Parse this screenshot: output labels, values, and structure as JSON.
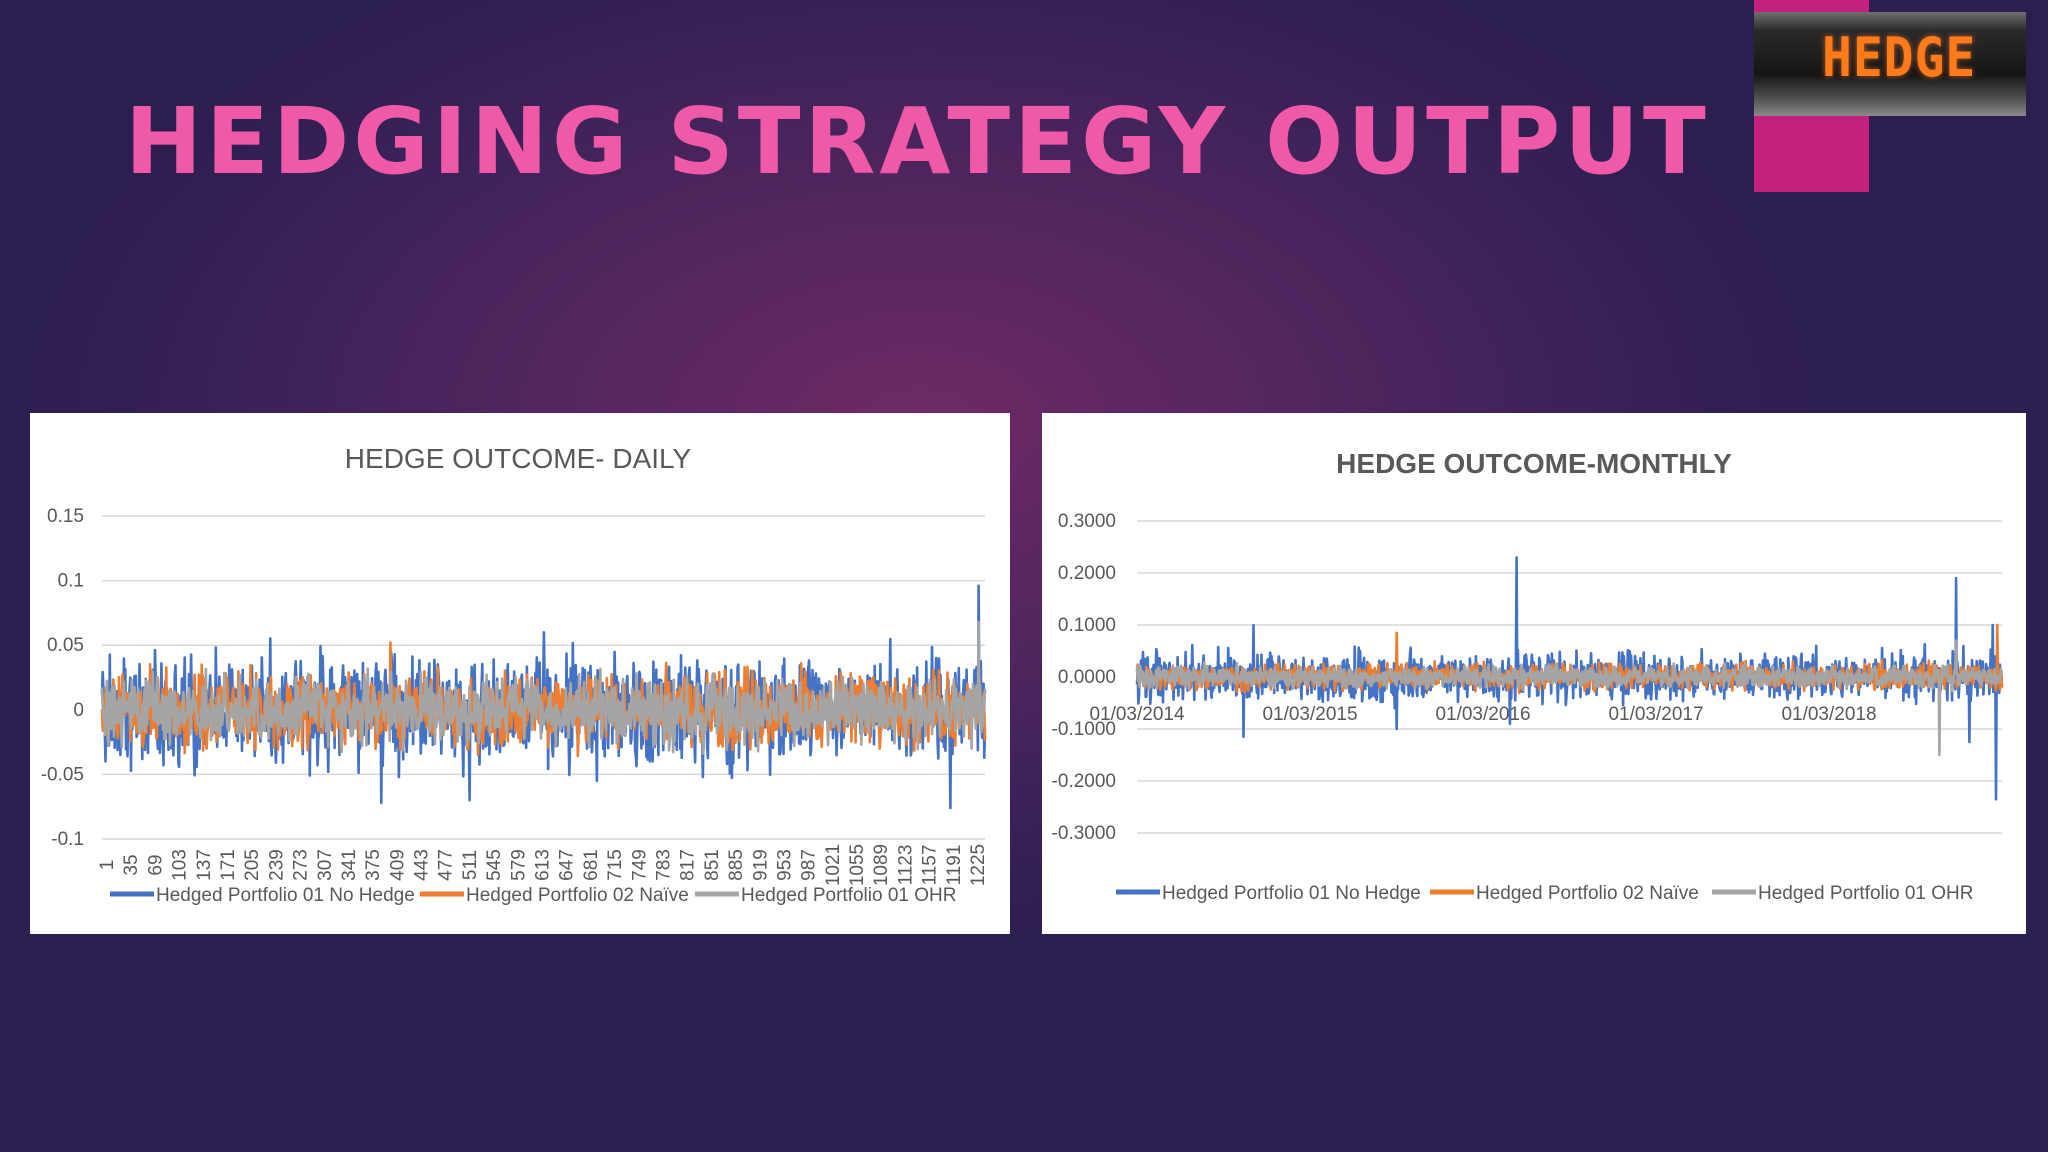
{
  "slide": {
    "title": "HEDGING STRATEGY OUTPUT",
    "photo_sign": "HEDGE"
  },
  "colors": {
    "no_hedge": "#4472c4",
    "naive": "#ed7d31",
    "ohr": "#a5a5a5"
  },
  "chart_data": [
    {
      "type": "line",
      "title": "HEDGE OUTCOME- DAILY",
      "ylim": [
        -0.1,
        0.15
      ],
      "yticks": [
        "0.15",
        "0.1",
        "0.05",
        "0",
        "-0.05",
        "-0.1"
      ],
      "x_ticklabels": [
        "1",
        "35",
        "69",
        "103",
        "137",
        "171",
        "205",
        "239",
        "273",
        "307",
        "341",
        "375",
        "409",
        "443",
        "477",
        "511",
        "545",
        "579",
        "613",
        "647",
        "681",
        "715",
        "749",
        "783",
        "817",
        "851",
        "885",
        "919",
        "953",
        "987",
        "1021",
        "1055",
        "1089",
        "1123",
        "1157",
        "1191",
        "1225"
      ],
      "x_count": 1250,
      "grid": true,
      "legend": "bottom",
      "series": [
        {
          "name": "Hedged Portfolio 01 No Hedge",
          "color": "#4472c4",
          "amplitude": 0.02,
          "spikes": [
            [
              40,
              0.025
            ],
            [
              180,
              0.035
            ],
            [
              320,
              -0.048
            ],
            [
              395,
              -0.072
            ],
            [
              420,
              -0.052
            ],
            [
              520,
              -0.07
            ],
            [
              625,
              0.06
            ],
            [
              700,
              -0.055
            ],
            [
              850,
              -0.052
            ],
            [
              900,
              0.035
            ],
            [
              1180,
              0.04
            ],
            [
              1200,
              -0.076
            ],
            [
              1240,
              0.096
            ]
          ]
        },
        {
          "name": "Hedged Portfolio 02 Naïve",
          "color": "#ed7d31",
          "amplitude": 0.014,
          "spikes": [
            [
              408,
              0.052
            ],
            [
              570,
              0.03
            ],
            [
              920,
              0.03
            ],
            [
              1100,
              -0.03
            ]
          ]
        },
        {
          "name": "Hedged Portfolio 01 OHR",
          "color": "#a5a5a5",
          "amplitude": 0.012,
          "spikes": [
            [
              1240,
              0.068
            ],
            [
              1230,
              -0.03
            ]
          ]
        }
      ]
    },
    {
      "type": "line",
      "title": "HEDGE OUTCOME-MONTHLY",
      "ylim": [
        -0.3,
        0.3
      ],
      "yticks": [
        "0.3000",
        "0.2000",
        "0.1000",
        "0.0000",
        "-0.1000",
        "-0.2000",
        "-0.3000"
      ],
      "x_ticklabels": [
        "01/03/2014",
        "01/03/2015",
        "01/03/2016",
        "01/03/2017",
        "01/03/2018"
      ],
      "x_count": 1300,
      "grid": true,
      "legend": "bottom",
      "series": [
        {
          "name": "Hedged Portfolio 01 No Hedge",
          "color": "#4472c4",
          "amplitude": 0.022,
          "spikes": [
            [
              30,
              0.045
            ],
            [
              175,
              0.1
            ],
            [
              160,
              -0.115
            ],
            [
              390,
              -0.1
            ],
            [
              560,
              0.105
            ],
            [
              570,
              0.23
            ],
            [
              560,
              -0.09
            ],
            [
              740,
              0.05
            ],
            [
              1020,
              0.06
            ],
            [
              1150,
              0.04
            ],
            [
              1230,
              0.19
            ],
            [
              1250,
              -0.125
            ],
            [
              1290,
              -0.235
            ],
            [
              1285,
              0.1
            ]
          ]
        },
        {
          "name": "Hedged Portfolio 02 Naïve",
          "color": "#ed7d31",
          "amplitude": 0.012,
          "spikes": [
            [
              390,
              0.085
            ],
            [
              600,
              0.02
            ],
            [
              1292,
              0.1
            ]
          ]
        },
        {
          "name": "Hedged Portfolio 01 OHR",
          "color": "#a5a5a5",
          "amplitude": 0.01,
          "spikes": [
            [
              1205,
              -0.15
            ],
            [
              1230,
              0.07
            ]
          ]
        }
      ]
    }
  ]
}
